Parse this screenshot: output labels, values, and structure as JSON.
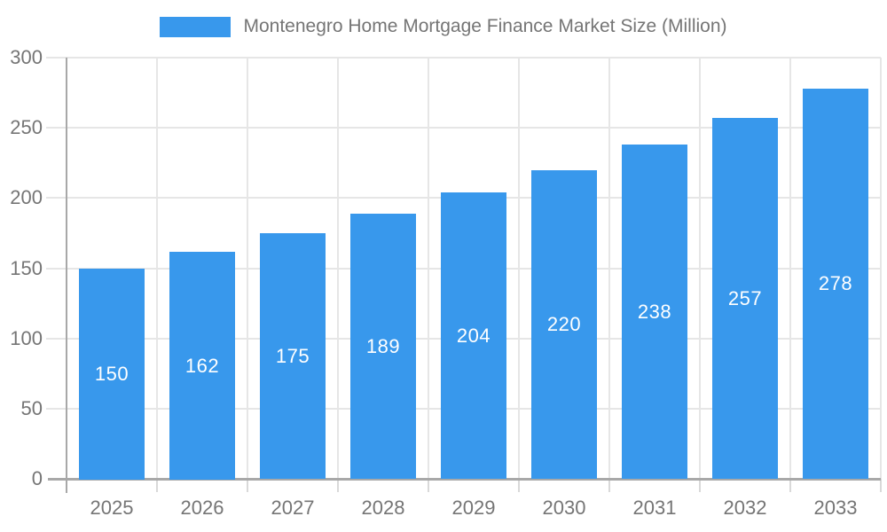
{
  "chart_data": {
    "type": "bar",
    "title": "Montenegro Home Mortgage Finance Market Size (Million)",
    "categories": [
      "2025",
      "2026",
      "2027",
      "2028",
      "2029",
      "2030",
      "2031",
      "2032",
      "2033"
    ],
    "values": [
      150,
      162,
      175,
      189,
      204,
      220,
      238,
      257,
      278
    ],
    "series_name": "Montenegro Home Mortgage Finance Market Size (Million)",
    "xlabel": "",
    "ylabel": "",
    "ylim": [
      0,
      300
    ],
    "ytick_step": 50,
    "yticks": [
      0,
      50,
      100,
      150,
      200,
      250,
      300
    ],
    "grid": true,
    "legend_position": "top-center",
    "bar_labels_shown": true,
    "colors": {
      "bar": "#3898ec",
      "bar_label": "#ffffff",
      "axis_line": "#a8a8a8",
      "gridline": "#e6e6e6",
      "tick_stub": "#d9d9d9",
      "text": "#757575",
      "background": "#ffffff"
    }
  }
}
